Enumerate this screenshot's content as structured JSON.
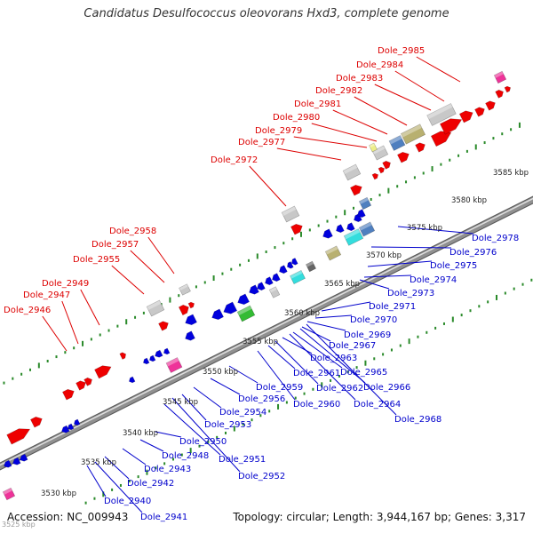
{
  "title": "Candidatus Desulfococcus oleovorans Hxd3, complete genome",
  "footer": {
    "accession": "Accession: NC_009943",
    "topology": "Topology: circular; Length: 3,944,167 bp; Genes: 3,317"
  },
  "corner_label": "3525 kbp",
  "colors": {
    "forward_label": "#dd0000",
    "reverse_label": "#0000cc",
    "backbone": "#909090",
    "tick": "#2a8a2a",
    "cds_forward": "#ee0000",
    "cds_reverse": "#0000dd",
    "rna_magenta": "#ee3399",
    "gray": "#c8c8c8",
    "khaki": "#b8b070",
    "steelblue": "#4f7fbf",
    "cyan": "#33dddd",
    "green": "#33bb33",
    "darkgray": "#666666",
    "yellow": "#eeee88"
  },
  "scale_labels": [
    "3530 kbp",
    "3535 kbp",
    "3540 kbp",
    "3545 kbp",
    "3550 kbp",
    "3555 kbp",
    "3560 kbp",
    "3565 kbp",
    "3570 kbp",
    "3575 kbp",
    "3580 kbp",
    "3585 kbp"
  ],
  "forward_labels": [
    "Dole_2946",
    "Dole_2947",
    "Dole_2949",
    "Dole_2955",
    "Dole_2957",
    "Dole_2958",
    "Dole_2972",
    "Dole_2977",
    "Dole_2979",
    "Dole_2980",
    "Dole_2981",
    "Dole_2982",
    "Dole_2983",
    "Dole_2984",
    "Dole_2985"
  ],
  "reverse_labels": [
    "Dole_2941",
    "Dole_2940",
    "Dole_2942",
    "Dole_2943",
    "Dole_2948",
    "Dole_2950",
    "Dole_2951",
    "Dole_2952",
    "Dole_2953",
    "Dole_2954",
    "Dole_2956",
    "Dole_2959",
    "Dole_2960",
    "Dole_2961",
    "Dole_2962",
    "Dole_2963",
    "Dole_2964",
    "Dole_2965",
    "Dole_2966",
    "Dole_2967",
    "Dole_2968",
    "Dole_2969",
    "Dole_2970",
    "Dole_2971",
    "Dole_2973",
    "Dole_2974",
    "Dole_2975",
    "Dole_2976",
    "Dole_2978"
  ]
}
